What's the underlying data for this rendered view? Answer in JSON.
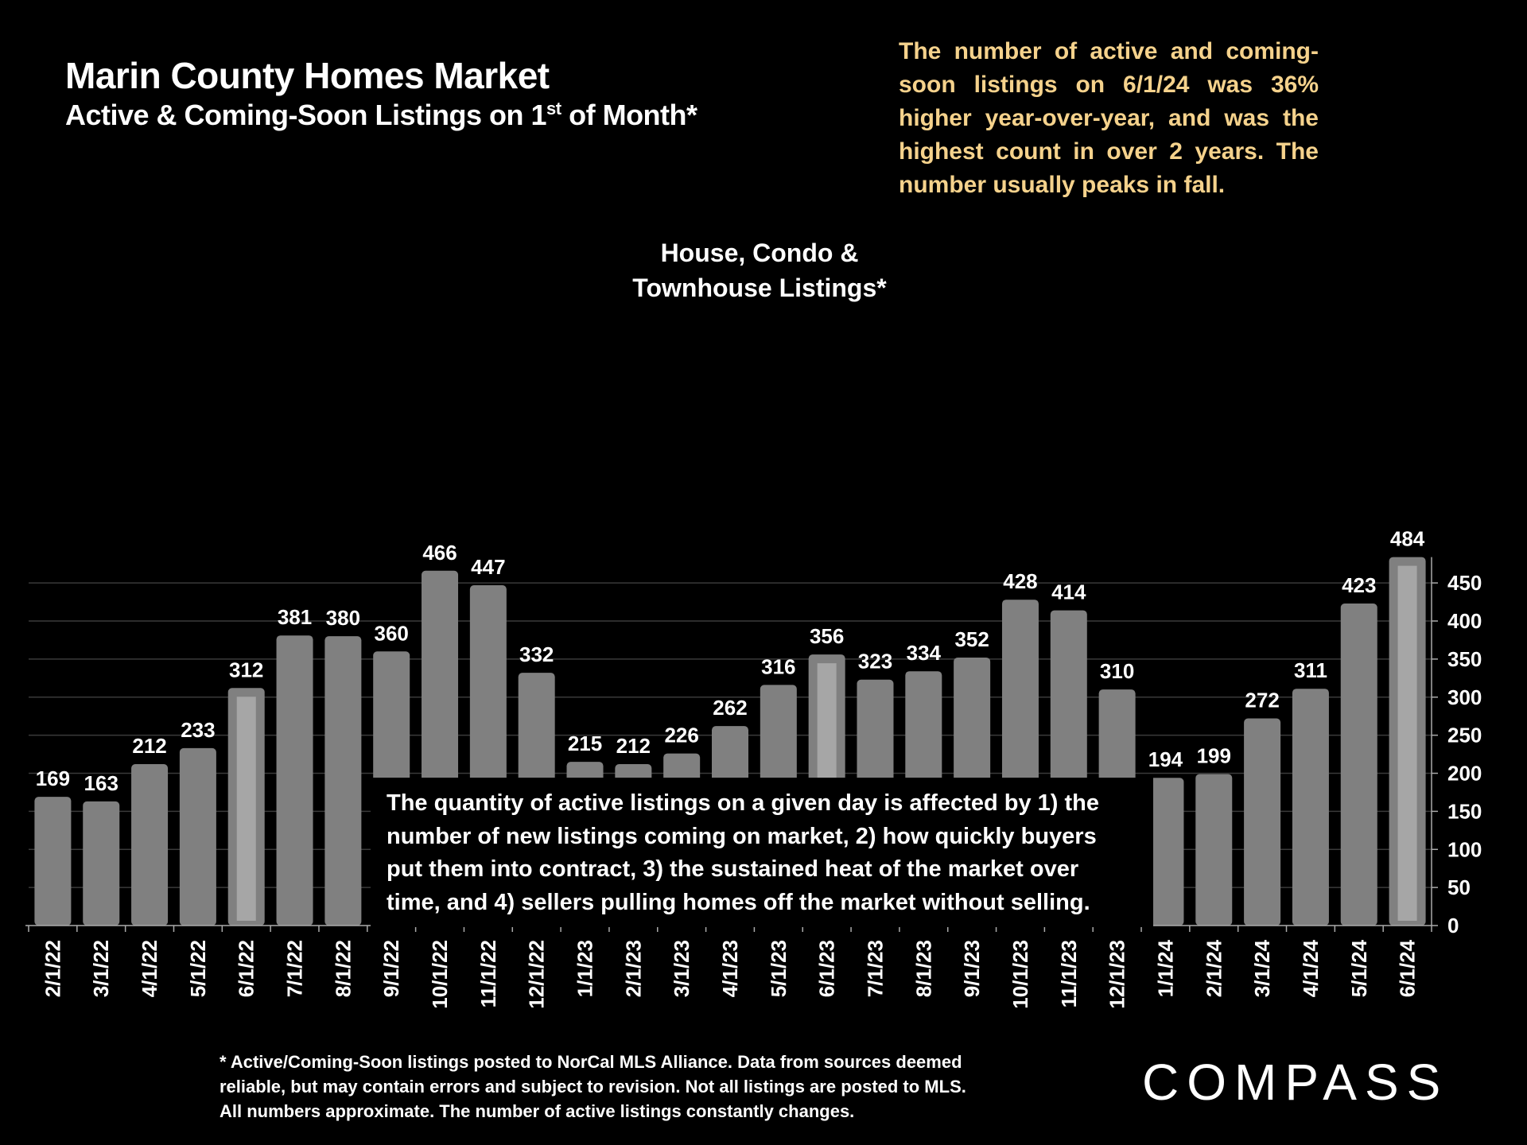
{
  "header": {
    "title": "Marin County Homes Market",
    "subtitle_main": "Active & Coming-Soon Listings on 1",
    "subtitle_sup": "st",
    "subtitle_end": " of Month*"
  },
  "annotation": "The number of active and coming-soon listings on 6/1/24 was 36% higher year-over-year, and was the highest count in over 2 years. The number usually peaks in fall.",
  "inner_label": {
    "line1": "House, Condo &",
    "line2": "Townhouse Listings*"
  },
  "note_box": "The quantity of active listings on a given day is affected by 1) the number of new listings coming on market, 2) how quickly buyers put them into contract, 3) the sustained heat of the market over time, and 4) sellers pulling homes off the market without selling.",
  "footnote": {
    "line1": "* Active/Coming-Soon listings posted to NorCal MLS Alliance.  Data from sources deemed",
    "line2": "reliable, but may contain errors and subject to revision.  Not all listings are posted to MLS.",
    "line3": "All numbers approximate. The number of active listings constantly changes."
  },
  "brand": "COMPASS",
  "colors": {
    "background": "#000000",
    "bar": "#808080",
    "highlight_inner": "#a6a6a6",
    "annotation": "#f5d28c",
    "text": "#ffffff"
  },
  "chart_data": {
    "type": "bar",
    "categories": [
      "2/1/22",
      "3/1/22",
      "4/1/22",
      "5/1/22",
      "6/1/22",
      "7/1/22",
      "8/1/22",
      "9/1/22",
      "10/1/22",
      "11/1/22",
      "12/1/22",
      "1/1/23",
      "2/1/23",
      "3/1/23",
      "4/1/23",
      "5/1/23",
      "6/1/23",
      "7/1/23",
      "8/1/23",
      "9/1/23",
      "10/1/23",
      "11/1/23",
      "12/1/23",
      "1/1/24",
      "2/1/24",
      "3/1/24",
      "4/1/24",
      "5/1/24",
      "6/1/24"
    ],
    "values": [
      169,
      163,
      212,
      233,
      312,
      381,
      380,
      360,
      466,
      447,
      332,
      215,
      212,
      226,
      262,
      316,
      356,
      323,
      334,
      352,
      428,
      414,
      310,
      194,
      199,
      272,
      311,
      423,
      484
    ],
    "highlighted": [
      "6/1/22",
      "6/1/23",
      "6/1/24"
    ],
    "ylim": [
      0,
      484
    ],
    "yticks": [
      0,
      50,
      100,
      150,
      200,
      250,
      300,
      350,
      400,
      450
    ],
    "y_axis_side": "right",
    "grid": true,
    "data_labels": true
  }
}
